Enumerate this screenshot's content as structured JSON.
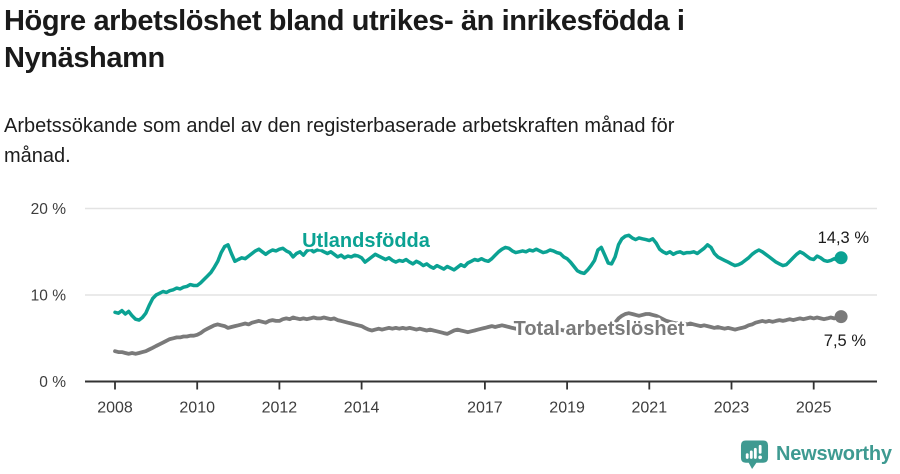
{
  "header": {
    "title_lines": [
      "Högre arbetslöshet bland utrikes- än inrikesfödda i",
      "Nynäshamn"
    ],
    "subtitle_lines": [
      "Arbetssökande som andel av den registerbaserade arbetskraften månad för",
      "månad."
    ]
  },
  "footer": {
    "brand": "Newsworthy",
    "brand_color": "#3E9A91",
    "logo_icon": "bar-chart-speech-bubble"
  },
  "chart_data": {
    "type": "line",
    "title": "Högre arbetslöshet bland utrikes- än inrikesfödda i Nynäshamn",
    "subtitle": "Arbetssökande som andel av den registerbaserade arbetskraften månad för månad.",
    "unit": "%",
    "frequency": "monthly",
    "x_start_year": 2008,
    "x_start_month": 1,
    "xlim": [
      2008,
      2025.75
    ],
    "ylim": [
      0,
      20
    ],
    "grid": "horizontal",
    "legend_position": "inline-labels",
    "xticks": [
      2008,
      2010,
      2012,
      2014,
      2017,
      2019,
      2021,
      2023,
      2025
    ],
    "yticks": [
      {
        "value": 0,
        "label": "0 %"
      },
      {
        "value": 10,
        "label": "10 %"
      },
      {
        "value": 20,
        "label": "20 %"
      }
    ],
    "series": [
      {
        "name": "Utlandsfödda",
        "color": "#0BA293",
        "end_value": 14.3,
        "end_label": "14,3 %",
        "values": [
          8.0,
          7.9,
          8.2,
          7.8,
          8.1,
          7.6,
          7.2,
          7.1,
          7.4,
          7.9,
          8.8,
          9.6,
          10.0,
          10.2,
          10.4,
          10.3,
          10.5,
          10.6,
          10.8,
          10.7,
          10.9,
          11.0,
          11.2,
          11.1,
          11.1,
          11.4,
          11.8,
          12.2,
          12.6,
          13.2,
          13.9,
          14.9,
          15.6,
          15.8,
          14.8,
          13.9,
          14.1,
          14.3,
          14.2,
          14.5,
          14.8,
          15.1,
          15.3,
          15.0,
          14.7,
          15.0,
          15.2,
          15.1,
          15.3,
          15.4,
          15.1,
          14.9,
          14.4,
          14.8,
          15.0,
          14.6,
          15.1,
          15.3,
          15.0,
          15.2,
          15.2,
          15.0,
          14.8,
          15.0,
          14.7,
          14.4,
          14.6,
          14.3,
          14.5,
          14.4,
          14.6,
          14.5,
          14.3,
          13.8,
          14.1,
          14.4,
          14.7,
          14.5,
          14.3,
          14.1,
          14.3,
          14.0,
          13.8,
          14.0,
          13.9,
          14.1,
          13.8,
          13.6,
          13.9,
          13.7,
          13.4,
          13.6,
          13.3,
          13.1,
          13.4,
          13.2,
          13.0,
          13.3,
          13.1,
          12.9,
          13.2,
          13.5,
          13.3,
          13.7,
          13.9,
          14.1,
          14.0,
          14.2,
          14.0,
          13.9,
          14.2,
          14.6,
          15.0,
          15.3,
          15.5,
          15.4,
          15.1,
          14.9,
          15.0,
          15.1,
          15.0,
          15.2,
          15.1,
          15.3,
          15.1,
          14.9,
          15.0,
          15.2,
          15.1,
          14.9,
          14.8,
          14.4,
          14.2,
          13.8,
          13.3,
          12.8,
          12.6,
          12.5,
          12.9,
          13.4,
          14.0,
          15.2,
          15.5,
          14.6,
          13.7,
          13.6,
          14.4,
          15.8,
          16.5,
          16.8,
          16.9,
          16.6,
          16.4,
          16.6,
          16.5,
          16.4,
          16.3,
          16.5,
          16.0,
          15.3,
          15.0,
          14.8,
          15.0,
          14.7,
          14.9,
          15.0,
          14.8,
          14.9,
          14.9,
          15.0,
          14.8,
          15.1,
          15.4,
          15.8,
          15.5,
          14.8,
          14.4,
          14.2,
          14.0,
          13.8,
          13.6,
          13.4,
          13.5,
          13.7,
          14.0,
          14.3,
          14.7,
          15.0,
          15.2,
          15.0,
          14.7,
          14.4,
          14.1,
          13.8,
          13.6,
          13.4,
          13.5,
          13.9,
          14.3,
          14.7,
          15.0,
          14.8,
          14.5,
          14.2,
          14.1,
          14.5,
          14.3,
          14.0,
          13.9,
          14.0,
          14.2,
          14.0,
          14.3
        ]
      },
      {
        "name": "Total arbetslöshet",
        "color": "#7a7a7a",
        "end_value": 7.5,
        "end_label": "7,5 %",
        "values": [
          3.5,
          3.4,
          3.4,
          3.3,
          3.2,
          3.3,
          3.2,
          3.3,
          3.4,
          3.5,
          3.7,
          3.9,
          4.1,
          4.3,
          4.5,
          4.7,
          4.9,
          5.0,
          5.1,
          5.1,
          5.2,
          5.2,
          5.3,
          5.3,
          5.4,
          5.6,
          5.9,
          6.1,
          6.3,
          6.5,
          6.6,
          6.5,
          6.4,
          6.2,
          6.3,
          6.4,
          6.5,
          6.6,
          6.7,
          6.6,
          6.8,
          6.9,
          7.0,
          6.9,
          6.8,
          7.0,
          7.1,
          7.0,
          7.0,
          7.2,
          7.3,
          7.2,
          7.4,
          7.3,
          7.2,
          7.3,
          7.2,
          7.3,
          7.4,
          7.3,
          7.3,
          7.4,
          7.3,
          7.2,
          7.3,
          7.1,
          7.0,
          6.9,
          6.8,
          6.7,
          6.6,
          6.5,
          6.4,
          6.2,
          6.0,
          5.9,
          6.0,
          6.1,
          6.0,
          6.1,
          6.2,
          6.1,
          6.2,
          6.1,
          6.2,
          6.1,
          6.2,
          6.1,
          6.0,
          6.1,
          6.0,
          5.9,
          6.0,
          5.9,
          5.8,
          5.7,
          5.6,
          5.5,
          5.7,
          5.9,
          6.0,
          5.9,
          5.8,
          5.7,
          5.8,
          5.9,
          6.0,
          6.1,
          6.2,
          6.3,
          6.4,
          6.3,
          6.4,
          6.5,
          6.4,
          6.3,
          6.2,
          6.1,
          6.2,
          6.1,
          6.2,
          6.1,
          6.0,
          6.1,
          6.0,
          5.9,
          6.0,
          5.9,
          5.8,
          5.9,
          6.0,
          5.9,
          6.0,
          6.1,
          6.0,
          6.1,
          6.2,
          6.3,
          6.4,
          6.3,
          6.2,
          6.3,
          6.2,
          6.3,
          6.4,
          6.5,
          6.8,
          7.3,
          7.6,
          7.8,
          7.9,
          7.8,
          7.7,
          7.6,
          7.7,
          7.8,
          7.8,
          7.7,
          7.6,
          7.4,
          7.2,
          7.0,
          6.9,
          6.8,
          6.7,
          6.8,
          6.7,
          6.6,
          6.7,
          6.6,
          6.5,
          6.4,
          6.5,
          6.4,
          6.3,
          6.2,
          6.3,
          6.2,
          6.1,
          6.2,
          6.1,
          6.0,
          6.1,
          6.2,
          6.3,
          6.5,
          6.6,
          6.8,
          6.9,
          7.0,
          6.9,
          7.0,
          6.9,
          7.0,
          7.1,
          7.0,
          7.1,
          7.2,
          7.1,
          7.2,
          7.3,
          7.2,
          7.3,
          7.4,
          7.3,
          7.4,
          7.3,
          7.2,
          7.3,
          7.4,
          7.3,
          7.4,
          7.5
        ]
      }
    ]
  }
}
